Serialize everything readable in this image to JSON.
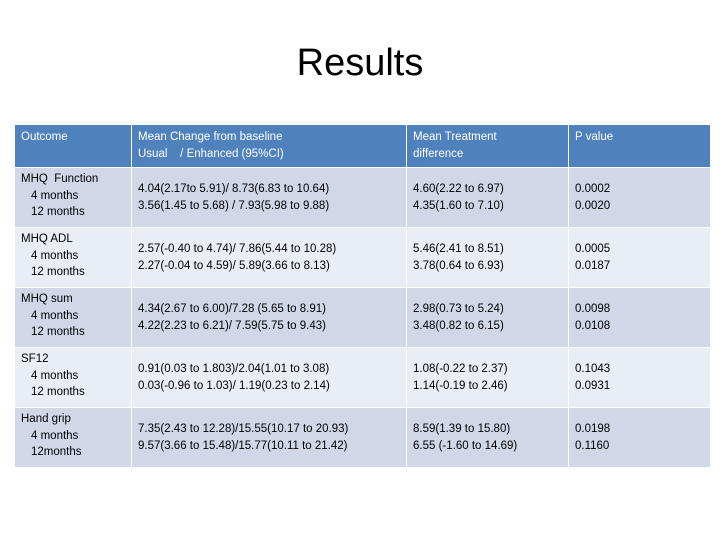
{
  "title": "Results",
  "table": {
    "headers": {
      "outcome": "Outcome",
      "mean_change_line1": "Mean Change from baseline",
      "mean_change_line2": "Usual    / Enhanced (95%CI)",
      "treatment_line1": "Mean Treatment",
      "treatment_line2": "difference",
      "pvalue": "P value"
    },
    "rows": [
      {
        "outcome": "MHQ  Function",
        "sub1": "4 months",
        "sub2": "12 months",
        "change1": "4.04(2.17to 5.91)/ 8.73(6.83 to 10.64)",
        "change2": "3.56(1.45 to 5.68) / 7.93(5.98 to 9.88)",
        "diff1": "4.60(2.22 to 6.97)",
        "diff2": "4.35(1.60 to 7.10)",
        "p1": "0.0002",
        "p2": "0.0020"
      },
      {
        "outcome": "MHQ ADL",
        "sub1": "4 months",
        "sub2": "12 months",
        "change1": "2.57(-0.40 to 4.74)/ 7.86(5.44 to 10.28)",
        "change2": "2.27(-0.04 to 4.59)/ 5.89(3.66 to 8.13)",
        "diff1": "5.46(2.41 to 8.51)",
        "diff2": "3.78(0.64 to 6.93)",
        "p1": "0.0005",
        "p2": "0.0187"
      },
      {
        "outcome": "MHQ sum",
        "sub1": "4 months",
        "sub2": "12 months",
        "change1": "4.34(2.67 to 6.00)/7.28 (5.65 to 8.91)",
        "change2": "4.22(2.23 to 6.21)/ 7.59(5.75 to 9.43)",
        "diff1": "2.98(0.73 to 5.24)",
        "diff2": "3.48(0.82 to 6.15)",
        "p1": "0.0098",
        "p2": "0.0108"
      },
      {
        "outcome": "SF12",
        "sub1": "4 months",
        "sub2": "12 months",
        "change1": "0.91(0.03 to 1.803)/2.04(1.01 to 3.08)",
        "change2": "0.03(-0.96 to 1.03)/ 1.19(0.23 to 2.14)",
        "diff1": "1.08(-0.22 to 2.37)",
        "diff2": "1.14(-0.19 to 2.46)",
        "p1": "0.1043",
        "p2": "0.0931"
      },
      {
        "outcome": "Hand grip",
        "sub1": "4 months",
        "sub2": "12months",
        "change1": "7.35(2.43 to 12.28)/15.55(10.17 to 20.93)",
        "change2": "9.57(3.66 to 15.48)/15.77(10.11 to 21.42)",
        "diff1": "8.59(1.39 to 15.80)",
        "diff2": "6.55 (-1.60 to 14.69)",
        "p1": "0.0198",
        "p2": "0.1160"
      }
    ]
  },
  "colors": {
    "header_bg": "#4f81bd",
    "row_odd_bg": "#d0d8e8",
    "row_even_bg": "#e9edf4"
  }
}
